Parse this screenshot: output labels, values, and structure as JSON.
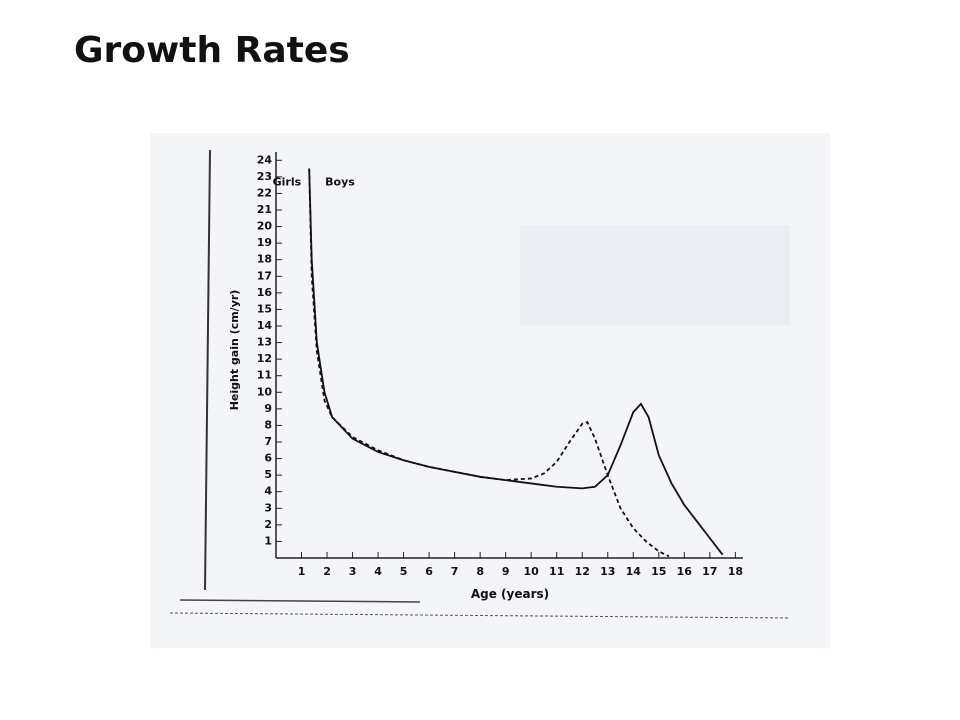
{
  "chart_data": {
    "type": "line",
    "title": "Growth Rates",
    "xlabel": "Age (years)",
    "ylabel": "Height gain (cm/yr)",
    "xlim": [
      0,
      18.3
    ],
    "ylim": [
      0,
      24.5
    ],
    "xticks": [
      1,
      2,
      3,
      4,
      5,
      6,
      7,
      8,
      9,
      10,
      11,
      12,
      13,
      14,
      15,
      16,
      17,
      18
    ],
    "yticks": [
      1,
      2,
      3,
      4,
      5,
      6,
      7,
      8,
      9,
      10,
      11,
      12,
      13,
      14,
      15,
      16,
      17,
      18,
      19,
      20,
      21,
      22,
      23,
      24
    ],
    "grid": false,
    "series": [
      {
        "name": "Girls",
        "color": "#111111",
        "style": "dashed",
        "x": [
          1.3,
          1.4,
          1.6,
          1.9,
          2.2,
          3,
          4,
          5,
          6,
          7,
          8,
          9,
          10,
          10.5,
          11,
          11.5,
          12,
          12.2,
          12.5,
          13,
          13.5,
          14,
          14.5,
          15,
          15.4
        ],
        "values": [
          23.5,
          17,
          12.5,
          9.5,
          8.5,
          7.3,
          6.5,
          5.9,
          5.5,
          5.2,
          4.9,
          4.7,
          4.8,
          5.1,
          5.8,
          7,
          8.1,
          8.2,
          7.2,
          5,
          3,
          1.8,
          1,
          0.4,
          0.1
        ]
      },
      {
        "name": "Boys",
        "color": "#111111",
        "style": "solid",
        "x": [
          1.3,
          1.4,
          1.6,
          1.9,
          2.2,
          3,
          4,
          5,
          6,
          7,
          8,
          9,
          10,
          11,
          12,
          12.5,
          13,
          13.5,
          14,
          14.3,
          14.6,
          15,
          15.5,
          16,
          16.5,
          17,
          17.5
        ],
        "values": [
          23.5,
          18,
          13,
          10,
          8.5,
          7.2,
          6.4,
          5.9,
          5.5,
          5.2,
          4.9,
          4.7,
          4.5,
          4.3,
          4.2,
          4.3,
          5,
          6.8,
          8.8,
          9.3,
          8.5,
          6.2,
          4.5,
          3.2,
          2.2,
          1.2,
          0.2
        ]
      }
    ]
  }
}
